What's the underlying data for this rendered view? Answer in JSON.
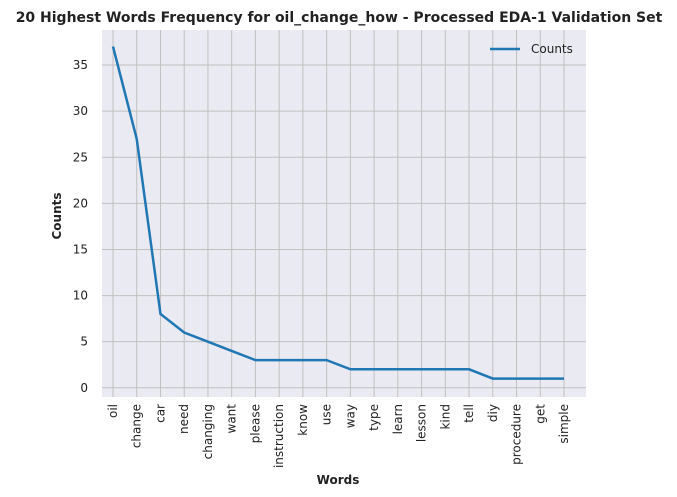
{
  "chart_data": {
    "type": "line",
    "title": "20 Highest Words Frequency for oil_change_how - Processed EDA-1 Validation Set",
    "xlabel": "Words",
    "ylabel": "Counts",
    "categories": [
      "oil",
      "change",
      "car",
      "need",
      "changing",
      "want",
      "please",
      "instruction",
      "know",
      "use",
      "way",
      "type",
      "learn",
      "lesson",
      "kind",
      "tell",
      "diy",
      "procedure",
      "get",
      "simple"
    ],
    "series": [
      {
        "name": "Counts",
        "values": [
          37,
          27,
          8,
          6,
          5,
          4,
          3,
          3,
          3,
          3,
          2,
          2,
          2,
          2,
          2,
          2,
          1,
          1,
          1,
          1
        ]
      }
    ],
    "ylim": [
      -1,
      38.8
    ],
    "yticks": [
      0,
      5,
      10,
      15,
      20,
      25,
      30,
      35
    ],
    "grid": true,
    "legend": "top-right",
    "colors": {
      "line": "#1f77b4",
      "plot_bg": "#eaeaf2",
      "grid": "#c0c0c0"
    }
  }
}
